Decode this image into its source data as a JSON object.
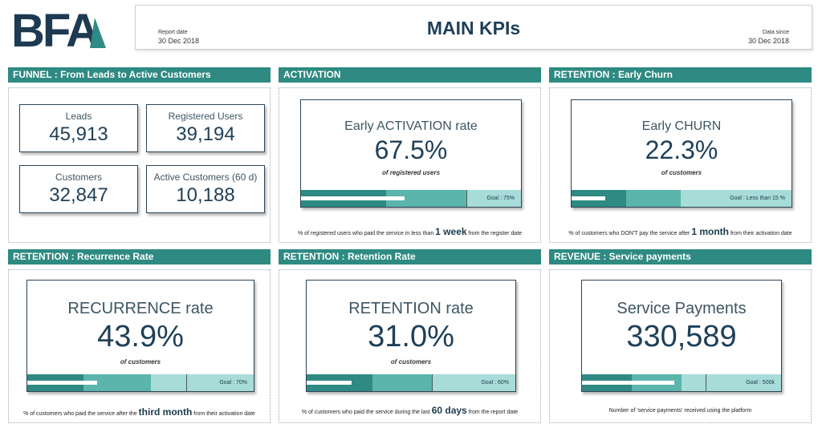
{
  "header": {
    "logo_text": "BFA",
    "report_date_label": "Report date",
    "report_date": "30 Dec 2018",
    "title": "MAIN KPIs",
    "data_since_label": "Data since",
    "data_since": "30 Dec 2018"
  },
  "colors": {
    "accent": "#2e8a82",
    "bar_light": "#a7dcd8",
    "bar_mid": "#5bb5ac",
    "bar_dark": "#2e8a82",
    "text_dark": "#1e3f58"
  },
  "funnel": {
    "title": "FUNNEL : From Leads to Active Customers",
    "cards": [
      {
        "label": "Leads",
        "value": "45,913"
      },
      {
        "label": "Registered Users",
        "value": "39,194"
      },
      {
        "label": "Customers",
        "value": "32,847"
      },
      {
        "label": "Active Customers (60 d)",
        "value": "10,188"
      }
    ]
  },
  "activation": {
    "title": "ACTIVATION",
    "kpi_title": "Early ACTIVATION rate",
    "value": "67.5%",
    "sub": "of registered users",
    "goal": "Goal : 75%",
    "progress": 0.675,
    "note_pre": "% of registered users who paid the service in less than",
    "note_big": "1 week",
    "note_post": "from the register date"
  },
  "churn": {
    "title": "RETENTION : Early Churn",
    "kpi_title": "Early CHURN",
    "value": "22.3%",
    "sub": "of customers",
    "goal": "Goal : Less than 15 %",
    "progress": 0.223,
    "note_pre": "% of customers who DON'T pay the service after",
    "note_big": "1 month",
    "note_post": "from their activation date"
  },
  "recurrence": {
    "title": "RETENTION : Recurrence Rate",
    "kpi_title": "RECURRENCE rate",
    "value": "43.9%",
    "sub": "of customers",
    "goal": "Goal : 70%",
    "progress": 0.439,
    "note_pre": "% of customers who paid the service after the",
    "note_big": "third month",
    "note_post": "from their activation date"
  },
  "retention": {
    "title": "RETENTION : Retention Rate",
    "kpi_title": "RETENTION rate",
    "value": "31.0%",
    "sub": "of customers",
    "goal": "Goal : 60%",
    "progress": 0.31,
    "note_pre": "% of customers who paid the service during the last",
    "note_big": "60 days",
    "note_post": "from the report date"
  },
  "revenue": {
    "title": "REVENUE : Service payments",
    "kpi_title": "Service Payments",
    "value": "330,589",
    "goal": "Goal : 500k",
    "progress": 0.661,
    "note": "Number of 'service payments' received using the platform"
  }
}
